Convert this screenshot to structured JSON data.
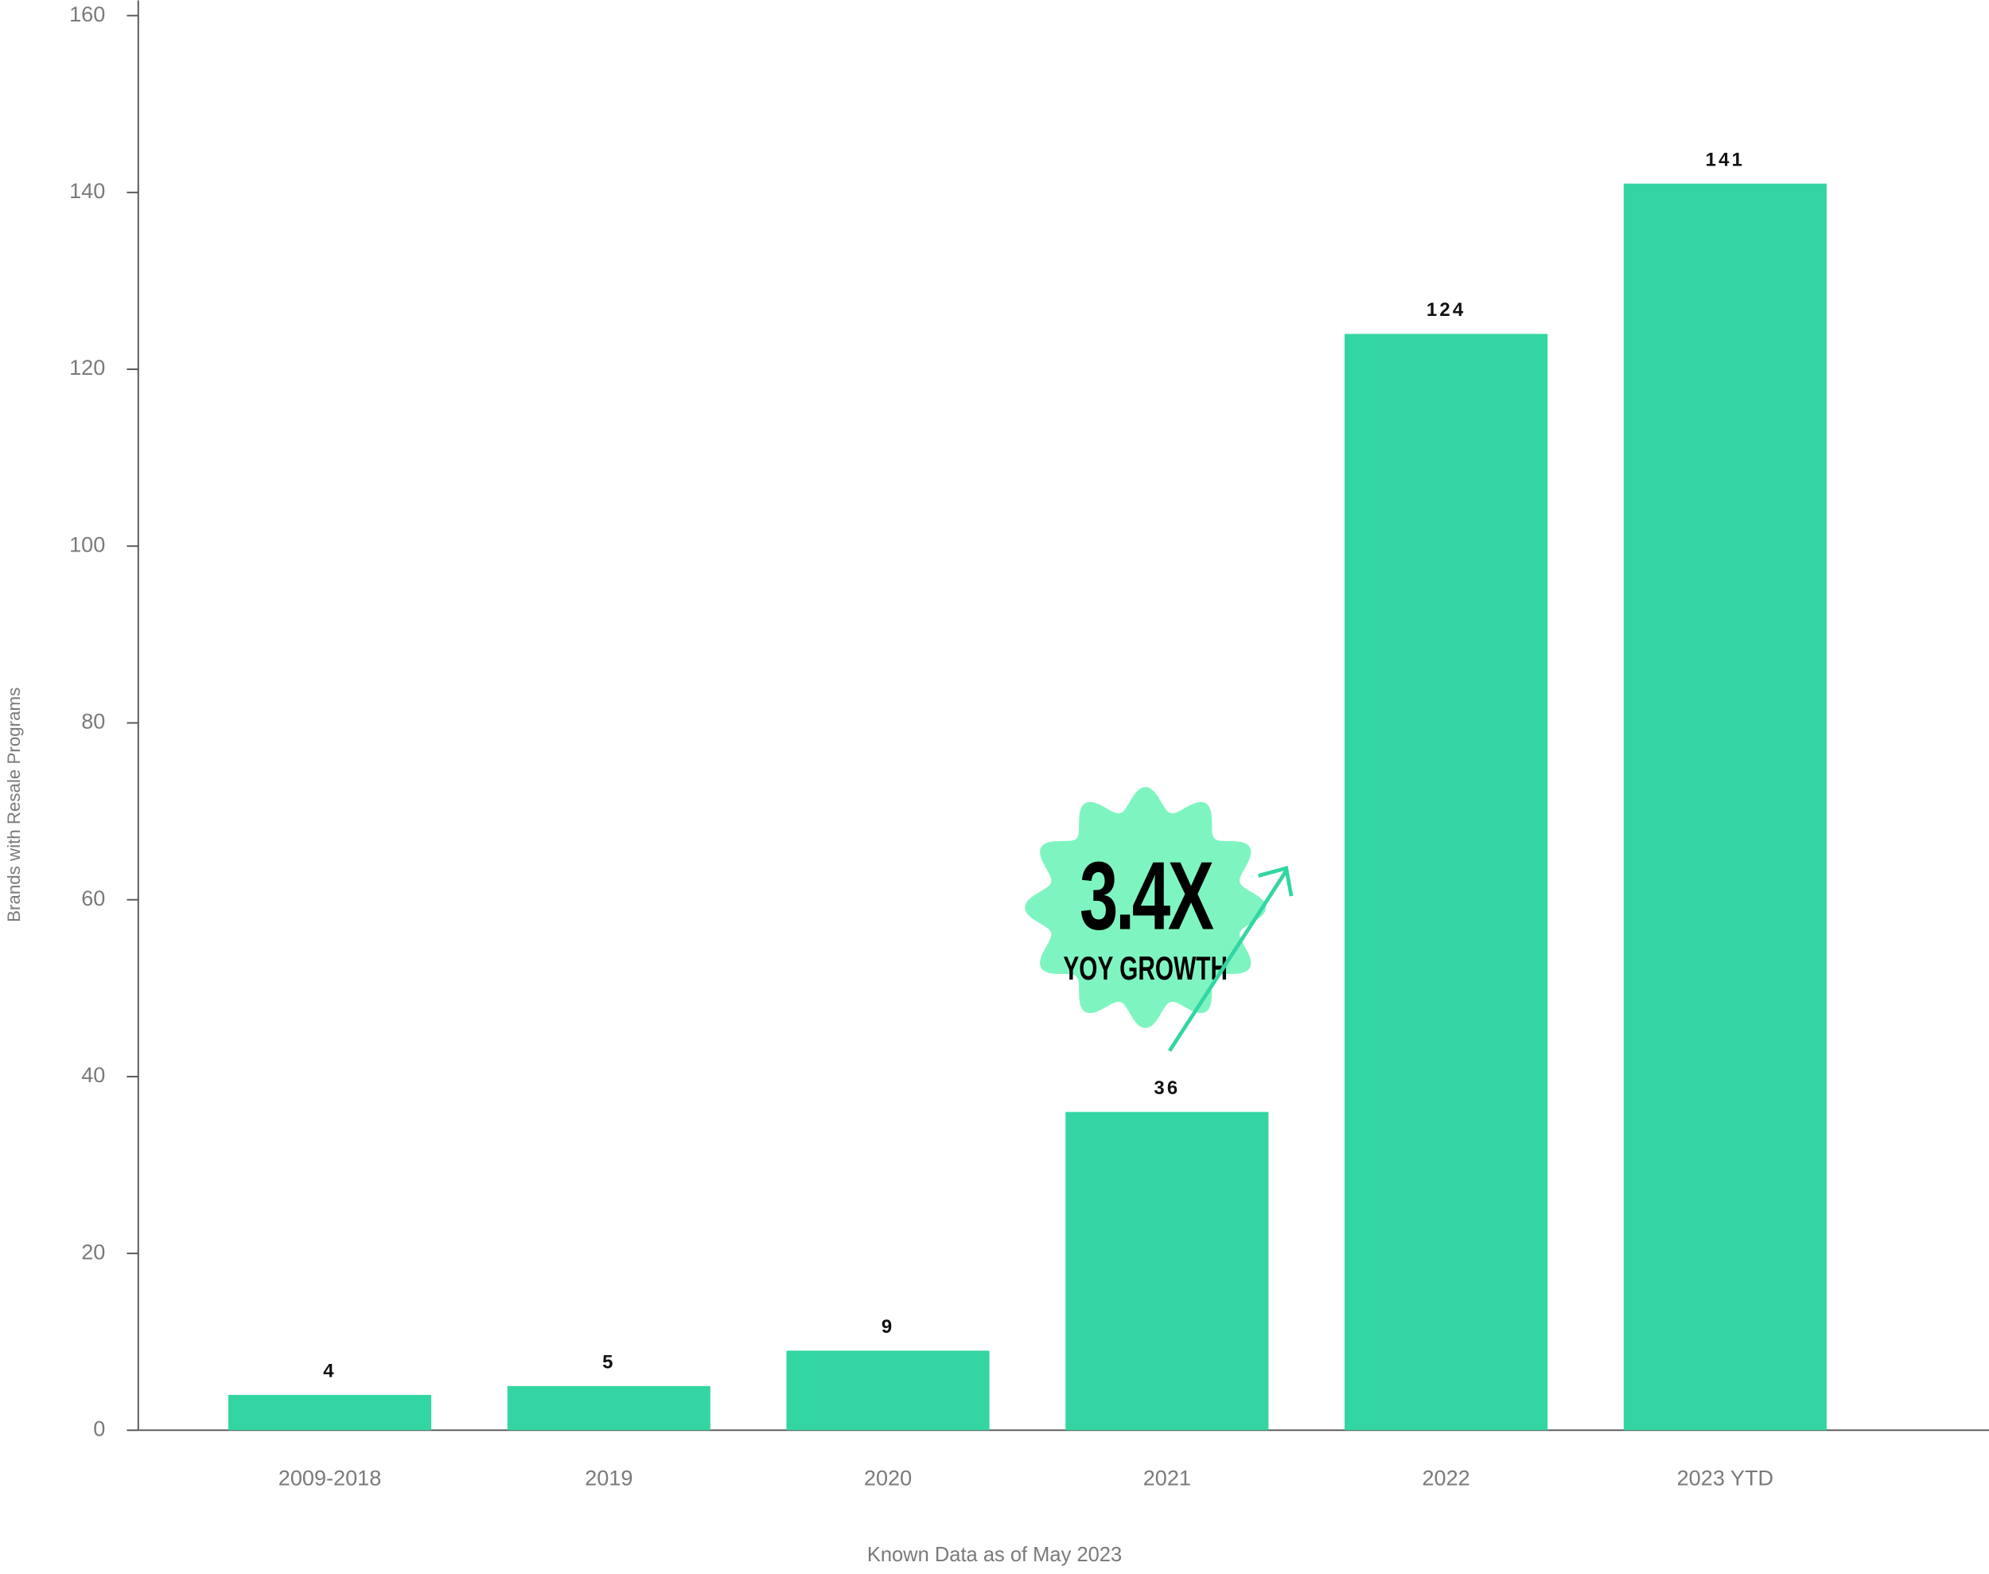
{
  "chart_data": {
    "type": "bar",
    "categories": [
      "2009-2018",
      "2019",
      "2020",
      "2021",
      "2022",
      "2023 YTD"
    ],
    "values": [
      4,
      5,
      9,
      36,
      124,
      141
    ],
    "color": "#33d6a2",
    "ylim": [
      0,
      160
    ],
    "yticks": [
      0,
      20,
      40,
      60,
      80,
      100,
      120,
      140,
      160
    ],
    "y_label": "Brands with Resale Programs",
    "x_label": "Known Data as of May 2023",
    "annotations": [
      "3.4X",
      "YOY GROWTH"
    ],
    "grid": false
  }
}
